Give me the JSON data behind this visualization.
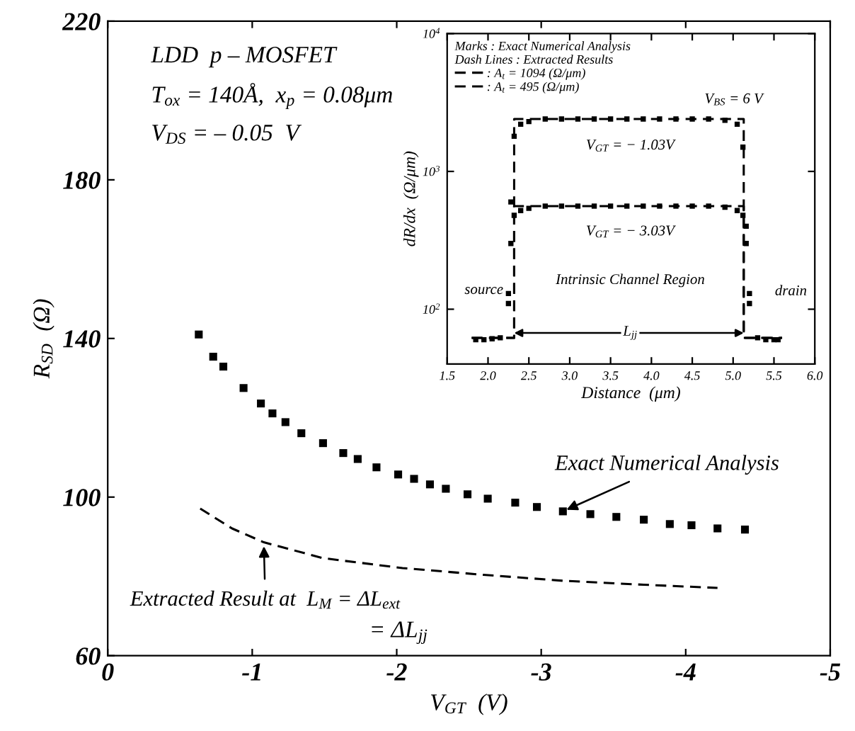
{
  "chart_data": [
    {
      "type": "scatter",
      "xlabel": "V$_{GT}$  (V)",
      "ylabel": "R$_{SD}$  (Ω)",
      "xlim": [
        0,
        -5
      ],
      "xticks": [
        0,
        -1,
        -2,
        -3,
        -4,
        -5
      ],
      "ylim": [
        60,
        220
      ],
      "yticks": [
        60,
        100,
        140,
        180,
        220
      ],
      "grid": false,
      "legend": false,
      "series": [
        {
          "marker": "square",
          "color": "#000000",
          "x": [
            -0.63,
            -0.73,
            -0.8,
            -0.94,
            -1.06,
            -1.14,
            -1.23,
            -1.34,
            -1.49,
            -1.63,
            -1.73,
            -1.86,
            -2.01,
            -2.12,
            -2.23,
            -2.34,
            -2.49,
            -2.63,
            -2.82,
            -2.97,
            -3.15,
            -3.34,
            -3.52,
            -3.71,
            -3.89,
            -4.04,
            -4.22,
            -4.41
          ],
          "values": [
            141,
            135.4,
            132.9,
            127.5,
            123.6,
            121.1,
            118.9,
            116.1,
            113.6,
            111.1,
            109.6,
            107.5,
            105.7,
            104.6,
            103.2,
            102.1,
            100.7,
            99.6,
            98.6,
            97.5,
            96.4,
            95.7,
            95.0,
            94.3,
            93.2,
            92.9,
            92.1,
            91.8
          ]
        },
        {
          "type": "line",
          "line_style": "dashed",
          "color": "#000000",
          "x": [
            -0.64,
            -0.86,
            -1.08,
            -1.49,
            -2.04,
            -2.6,
            -3.15,
            -3.71,
            -4.22
          ],
          "values": [
            97.1,
            92.1,
            88.6,
            84.6,
            82.1,
            80.4,
            78.9,
            77.9,
            77.1
          ]
        }
      ],
      "annotations": [
        "LDD  p – MOSFET",
        "T$_{ox}$ = 140Å,  x$_{p}$ = 0.08μm",
        "V$_{DS}$ = – 0.05  V",
        {
          "text": "Exact Numerical Analysis",
          "x": -3.15,
          "y": 96.4
        },
        {
          "text": "Extracted Result at  L$_{M}$ = ΔL$_{ext}$",
          "x": -1.08,
          "y": 88.6
        },
        "= ΔL$_{jj}$"
      ]
    },
    {
      "type": "scatter",
      "xlabel": "Distance  (μm)",
      "ylabel": "dR/dx  (Ω/μm)",
      "log": "y",
      "xlim": [
        1.5,
        6.0
      ],
      "xticks": [
        1.5,
        {
          "value": 2,
          "label": "2.0"
        },
        2.5,
        {
          "value": 3,
          "label": "3.0"
        },
        3.5,
        {
          "value": 4,
          "label": "4.0"
        },
        4.5,
        {
          "value": 5,
          "label": "5.0"
        },
        5.5,
        {
          "value": 6,
          "label": "6.0"
        }
      ],
      "ylim": [
        40,
        10000
      ],
      "yticks": [
        {
          "value": 100,
          "label": "10$^{2}$"
        },
        {
          "value": 1000,
          "label": "10$^{3}$"
        },
        {
          "value": 10000,
          "label": "10$^{4}$"
        }
      ],
      "grid": false,
      "legend": "top left",
      "legend_title": "Marks : Exact Numerical Analysis\nDash Lines : Extracted Results",
      "series": [
        {
          "marker": "square",
          "color": "#000000",
          "x": [
            1.85,
            1.95,
            2.05,
            2.15,
            2.25,
            2.28,
            2.32,
            2.4,
            2.5,
            2.7,
            2.9,
            3.1,
            3.3,
            3.5,
            3.7,
            3.9,
            4.1,
            4.3,
            4.5,
            4.7,
            4.9,
            5.05,
            5.12,
            5.16,
            5.2,
            5.3,
            5.4,
            5.5,
            5.55
          ],
          "values": [
            60,
            60,
            61,
            62,
            130,
            600,
            1800,
            2200,
            2300,
            2400,
            2400,
            2400,
            2400,
            2400,
            2400,
            2400,
            2400,
            2400,
            2400,
            2400,
            2350,
            2200,
            1500,
            400,
            130,
            62,
            60,
            60,
            60
          ]
        },
        {
          "marker": "square",
          "color": "#000000",
          "x": [
            2.25,
            2.28,
            2.32,
            2.4,
            2.5,
            2.7,
            2.9,
            3.1,
            3.3,
            3.5,
            3.7,
            3.9,
            4.1,
            4.3,
            4.5,
            4.7,
            4.9,
            5.05,
            5.12,
            5.16,
            5.2
          ],
          "values": [
            110,
            300,
            480,
            520,
            540,
            560,
            560,
            560,
            560,
            560,
            560,
            560,
            560,
            560,
            560,
            560,
            550,
            520,
            480,
            300,
            110
          ]
        },
        {
          "type": "line",
          "line_style": "dashed",
          "name": ": A$_{t}$ = 1094 (Ω/μm)",
          "color": "#000000",
          "x": [
            1.8,
            2.32,
            2.32,
            5.13,
            5.13,
            5.6
          ],
          "values": [
            62,
            62,
            2400,
            2400,
            62,
            62
          ]
        },
        {
          "type": "line",
          "line_style": "dashed",
          "name": ": A$_{t}$ = 495 (Ω/μm)",
          "color": "#000000",
          "x": [
            1.8,
            2.32,
            2.32,
            5.13,
            5.13,
            5.6
          ],
          "values": [
            62,
            62,
            560,
            560,
            62,
            62
          ]
        }
      ],
      "annotations": [
        "V$_{BS}$ = 6 V",
        "V$_{GT}$ = − 1.03V",
        "V$_{GT}$ = − 3.03V",
        "Intrinsic Channel Region",
        "source",
        "drain",
        "L$_{jj}$"
      ]
    }
  ]
}
